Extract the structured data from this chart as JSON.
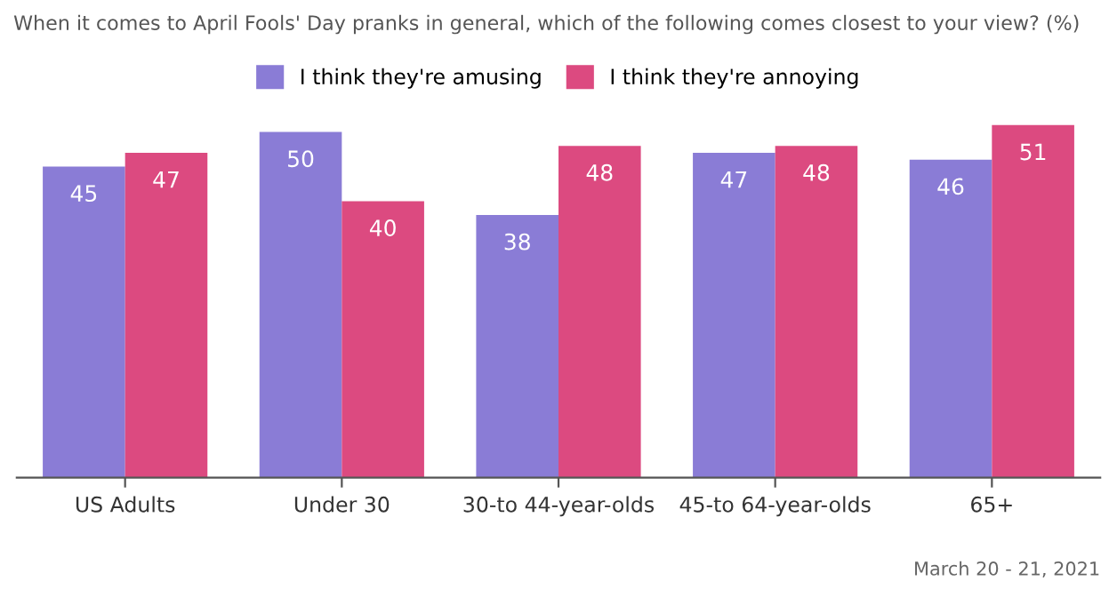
{
  "chart_data": {
    "type": "bar",
    "title": "When it comes to April Fools' Day pranks in general, which of the following comes closest to your view? (%)",
    "categories": [
      "US Adults",
      "Under 30",
      "30-to 44-year-olds",
      "45-to 64-year-olds",
      "65+"
    ],
    "series": [
      {
        "name": "I think they're amusing",
        "color": "#8a7cd6",
        "values": [
          45,
          50,
          38,
          47,
          46
        ]
      },
      {
        "name": "I think they're annoying",
        "color": "#dc4a80",
        "values": [
          47,
          40,
          48,
          48,
          51
        ]
      }
    ],
    "data_labels": true,
    "legend": "top",
    "grid": false,
    "annotations": [
      "March 20 - 21, 2021"
    ]
  }
}
